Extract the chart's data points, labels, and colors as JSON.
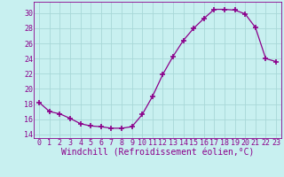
{
  "x": [
    0,
    1,
    2,
    3,
    4,
    5,
    6,
    7,
    8,
    9,
    10,
    11,
    12,
    13,
    14,
    15,
    16,
    17,
    18,
    19,
    20,
    21,
    22,
    23
  ],
  "y": [
    18.2,
    17.0,
    16.7,
    16.1,
    15.4,
    15.1,
    15.0,
    14.8,
    14.8,
    15.0,
    16.6,
    19.0,
    21.9,
    24.3,
    26.4,
    28.0,
    29.3,
    30.5,
    30.5,
    30.4,
    29.9,
    28.1,
    24.0,
    23.6
  ],
  "line_color": "#8B008B",
  "marker": "+",
  "marker_size": 4,
  "marker_lw": 1.2,
  "bg_color": "#c8f0f0",
  "grid_color": "#a8d8d8",
  "xlabel": "Windchill (Refroidissement éolien,°C)",
  "xlim": [
    -0.5,
    23.5
  ],
  "ylim": [
    13.5,
    31.5
  ],
  "yticks": [
    14,
    16,
    18,
    20,
    22,
    24,
    26,
    28,
    30
  ],
  "xticks": [
    0,
    1,
    2,
    3,
    4,
    5,
    6,
    7,
    8,
    9,
    10,
    11,
    12,
    13,
    14,
    15,
    16,
    17,
    18,
    19,
    20,
    21,
    22,
    23
  ],
  "tick_label_fontsize": 6,
  "xlabel_fontsize": 7
}
